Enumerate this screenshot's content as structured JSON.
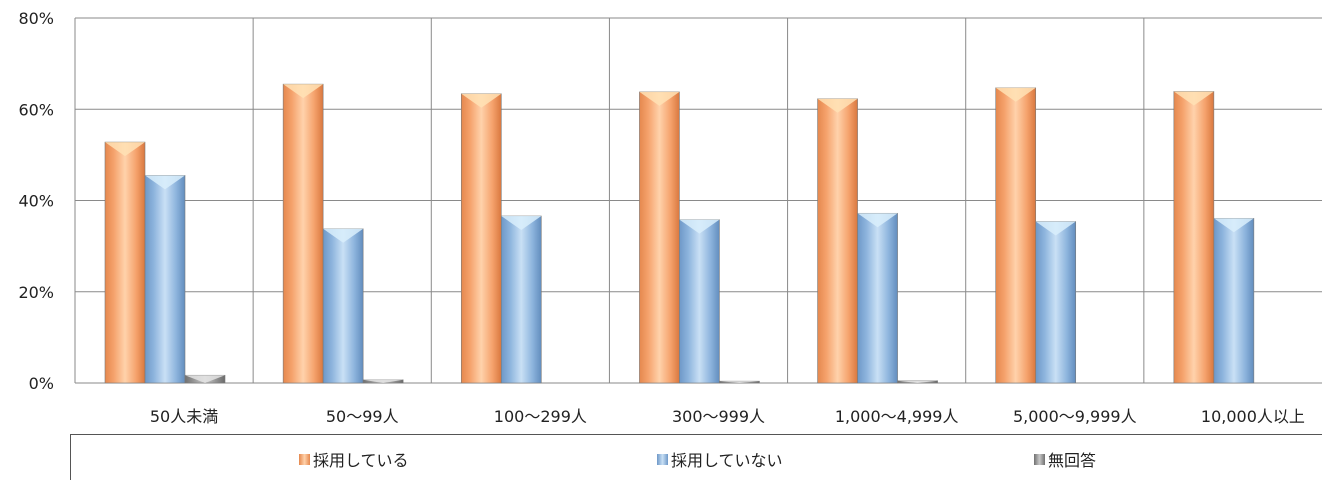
{
  "chart_data": {
    "type": "bar",
    "categories": [
      "50人未満",
      "50～99人",
      "100～299人",
      "300～999人",
      "1,000～4,999人",
      "5,000～9,999人",
      "10,000人以上"
    ],
    "series": [
      {
        "name": "採用している",
        "values": [
          52.8,
          65.5,
          63.4,
          63.8,
          62.3,
          64.7,
          63.9
        ],
        "color": "#F5A26C"
      },
      {
        "name": "採用していない",
        "values": [
          45.5,
          33.8,
          36.6,
          35.8,
          37.2,
          35.4,
          36.1
        ],
        "color": "#8DB4DD"
      },
      {
        "name": "無回答",
        "values": [
          1.7,
          0.7,
          0.0,
          0.4,
          0.5,
          0.0,
          0.0
        ],
        "color": "#8C8C8C"
      }
    ],
    "ylim": [
      0,
      80
    ],
    "yticks": [
      "0%",
      "20%",
      "40%",
      "60%",
      "80%"
    ],
    "ytick_values": [
      0,
      20,
      40,
      60,
      80
    ],
    "grid": true,
    "legend_position": "bottom"
  }
}
